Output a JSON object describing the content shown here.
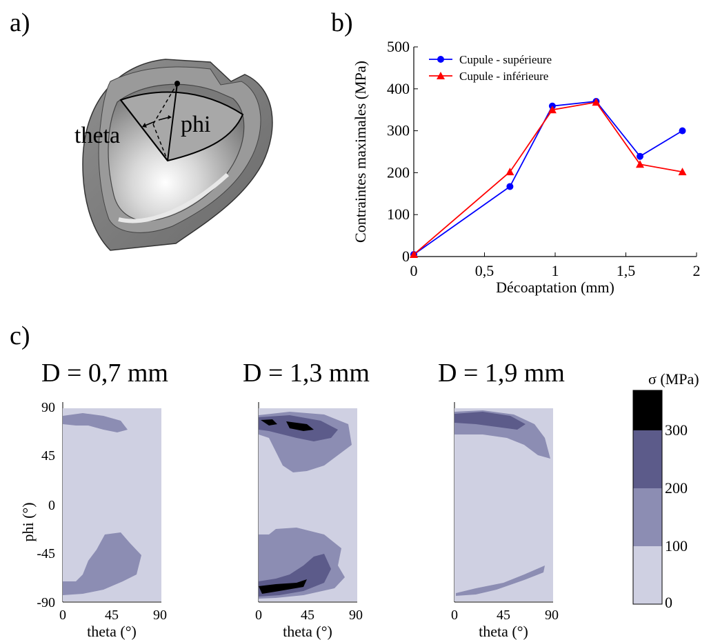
{
  "panels": {
    "a": {
      "label": "a)",
      "theta_label": "theta",
      "phi_label": "phi"
    },
    "b": {
      "label": "b)"
    },
    "c": {
      "label": "c)",
      "maps": [
        {
          "title": "D = 0,7 mm"
        },
        {
          "title": "D = 1,3 mm"
        },
        {
          "title": "D = 1,9 mm"
        }
      ],
      "ylabel": "phi (°)",
      "xlabel": "theta (°)",
      "x_ticks": [
        "0",
        "45",
        "90"
      ],
      "y_ticks": [
        "90",
        "45",
        "0",
        "-45",
        "-90"
      ],
      "colorbar": {
        "title": "σ (MPa)",
        "ticks": [
          "300",
          "200",
          "100",
          "0"
        ],
        "colors": [
          "#cfd0e2",
          "#8c8db3",
          "#5c5b8a",
          "#000000"
        ]
      }
    }
  },
  "chart_data": {
    "type": "line",
    "title": "",
    "xlabel": "Décoaptation (mm)",
    "ylabel": "Contraintes maximales (MPa)",
    "xlim": [
      0,
      2
    ],
    "ylim": [
      0,
      500
    ],
    "x_ticks": [
      "0",
      "0,5",
      "1",
      "1,5",
      "2"
    ],
    "y_ticks": [
      "0",
      "100",
      "200",
      "300",
      "400",
      "500"
    ],
    "legend_position": "top-left",
    "series": [
      {
        "name": "Cupule - supérieure",
        "color": "#0000ff",
        "marker": "circle",
        "x": [
          0,
          0.68,
          0.98,
          1.29,
          1.6,
          1.9
        ],
        "values": [
          5,
          167,
          359,
          370,
          239,
          300
        ]
      },
      {
        "name": "Cupule - inférieure",
        "color": "#ff0000",
        "marker": "triangle",
        "x": [
          0,
          0.68,
          0.98,
          1.29,
          1.6,
          1.9
        ],
        "values": [
          5,
          202,
          350,
          368,
          220,
          202
        ]
      }
    ]
  }
}
